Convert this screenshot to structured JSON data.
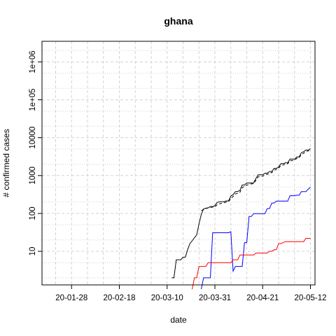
{
  "chart_data": {
    "type": "line",
    "title": "ghana",
    "xlabel": "date",
    "ylabel": "# confirmed cases",
    "x_ticks": [
      "20-01-28",
      "20-02-18",
      "20-03-10",
      "20-03-31",
      "20-04-21",
      "20-05-12"
    ],
    "y_ticks": [
      "10",
      "100",
      "1000",
      "10000",
      "1e+05",
      "1e+06"
    ],
    "xlim": [
      "2020-01-15",
      "2020-05-14"
    ],
    "ylim": [
      1.3,
      3500000
    ],
    "y_scale": "log",
    "grid": true,
    "series": [
      {
        "color": "#000000",
        "dash": "solid",
        "points": [
          [
            "2020-03-12",
            2
          ],
          [
            "2020-03-13",
            2
          ],
          [
            "2020-03-14",
            6
          ],
          [
            "2020-03-15",
            6
          ],
          [
            "2020-03-16",
            6
          ],
          [
            "2020-03-17",
            7
          ],
          [
            "2020-03-18",
            7
          ],
          [
            "2020-03-19",
            11
          ],
          [
            "2020-03-20",
            16
          ],
          [
            "2020-03-21",
            19
          ],
          [
            "2020-03-22",
            23
          ],
          [
            "2020-03-23",
            27
          ],
          [
            "2020-03-24",
            53
          ],
          [
            "2020-03-25",
            93
          ],
          [
            "2020-03-26",
            132
          ],
          [
            "2020-03-27",
            137
          ],
          [
            "2020-03-28",
            141
          ],
          [
            "2020-03-29",
            152
          ],
          [
            "2020-03-30",
            152
          ],
          [
            "2020-03-31",
            161
          ],
          [
            "2020-04-01",
            195
          ],
          [
            "2020-04-02",
            204
          ],
          [
            "2020-04-03",
            205
          ],
          [
            "2020-04-04",
            205
          ],
          [
            "2020-04-05",
            214
          ],
          [
            "2020-04-06",
            214
          ],
          [
            "2020-04-07",
            287
          ],
          [
            "2020-04-08",
            313
          ],
          [
            "2020-04-09",
            378
          ],
          [
            "2020-04-10",
            378
          ],
          [
            "2020-04-11",
            408
          ],
          [
            "2020-04-12",
            566
          ],
          [
            "2020-04-13",
            566
          ],
          [
            "2020-04-14",
            636
          ],
          [
            "2020-04-15",
            636
          ],
          [
            "2020-04-16",
            641
          ],
          [
            "2020-04-17",
            641
          ],
          [
            "2020-04-18",
            834
          ],
          [
            "2020-04-19",
            1042
          ],
          [
            "2020-04-20",
            1042
          ],
          [
            "2020-04-21",
            1042
          ],
          [
            "2020-04-22",
            1154
          ],
          [
            "2020-04-23",
            1154
          ],
          [
            "2020-04-24",
            1279
          ],
          [
            "2020-04-25",
            1279
          ],
          [
            "2020-04-26",
            1550
          ],
          [
            "2020-04-27",
            1550
          ],
          [
            "2020-04-28",
            1671
          ],
          [
            "2020-04-29",
            2074
          ],
          [
            "2020-04-30",
            2074
          ],
          [
            "2020-05-01",
            2169
          ],
          [
            "2020-05-02",
            2169
          ],
          [
            "2020-05-03",
            2719
          ],
          [
            "2020-05-04",
            2719
          ],
          [
            "2020-05-05",
            2719
          ],
          [
            "2020-05-06",
            3091
          ],
          [
            "2020-05-07",
            3091
          ],
          [
            "2020-05-08",
            4012
          ],
          [
            "2020-05-09",
            4263
          ],
          [
            "2020-05-10",
            4700
          ],
          [
            "2020-05-11",
            4700
          ],
          [
            "2020-05-12",
            5127
          ]
        ]
      },
      {
        "color": "#000000",
        "dash": "dashed",
        "points": [
          [
            "2020-03-25",
            118
          ],
          [
            "2020-03-26",
            128
          ],
          [
            "2020-03-27",
            135
          ],
          [
            "2020-03-28",
            140
          ],
          [
            "2020-03-29",
            145
          ],
          [
            "2020-03-30",
            147
          ],
          [
            "2020-03-31",
            150
          ],
          [
            "2020-04-01",
            170
          ],
          [
            "2020-04-02",
            180
          ],
          [
            "2020-04-03",
            185
          ],
          [
            "2020-04-04",
            190
          ],
          [
            "2020-04-05",
            200
          ],
          [
            "2020-04-06",
            205
          ],
          [
            "2020-04-07",
            250
          ],
          [
            "2020-04-08",
            280
          ],
          [
            "2020-04-09",
            330
          ],
          [
            "2020-04-10",
            340
          ],
          [
            "2020-04-11",
            360
          ],
          [
            "2020-04-12",
            480
          ],
          [
            "2020-04-13",
            520
          ],
          [
            "2020-04-14",
            560
          ],
          [
            "2020-04-15",
            580
          ],
          [
            "2020-04-16",
            600
          ],
          [
            "2020-04-17",
            610
          ],
          [
            "2020-04-18",
            750
          ],
          [
            "2020-04-19",
            920
          ],
          [
            "2020-04-20",
            950
          ],
          [
            "2020-04-21",
            960
          ],
          [
            "2020-04-22",
            1050
          ],
          [
            "2020-04-23",
            1080
          ],
          [
            "2020-04-24",
            1150
          ],
          [
            "2020-04-25",
            1200
          ],
          [
            "2020-04-26",
            1400
          ],
          [
            "2020-04-27",
            1450
          ],
          [
            "2020-04-28",
            1550
          ],
          [
            "2020-04-29",
            1850
          ],
          [
            "2020-04-30",
            1900
          ],
          [
            "2020-05-01",
            2000
          ],
          [
            "2020-05-02",
            2050
          ],
          [
            "2020-05-03",
            2450
          ],
          [
            "2020-05-04",
            2500
          ],
          [
            "2020-05-05",
            2550
          ],
          [
            "2020-05-06",
            2850
          ],
          [
            "2020-05-07",
            2950
          ],
          [
            "2020-05-08",
            3600
          ],
          [
            "2020-05-09",
            3900
          ],
          [
            "2020-05-10",
            4300
          ],
          [
            "2020-05-11",
            4450
          ],
          [
            "2020-05-12",
            4800
          ]
        ]
      },
      {
        "color": "#0000ff",
        "dash": "solid",
        "points": [
          [
            "2020-03-25",
            1
          ],
          [
            "2020-03-26",
            2
          ],
          [
            "2020-03-27",
            2
          ],
          [
            "2020-03-28",
            2
          ],
          [
            "2020-03-29",
            2
          ],
          [
            "2020-03-30",
            31
          ],
          [
            "2020-03-31",
            31
          ],
          [
            "2020-04-01",
            31
          ],
          [
            "2020-04-02",
            31
          ],
          [
            "2020-04-03",
            31
          ],
          [
            "2020-04-04",
            31
          ],
          [
            "2020-04-05",
            31
          ],
          [
            "2020-04-06",
            31
          ],
          [
            "2020-04-07",
            33
          ],
          [
            "2020-04-08",
            3
          ],
          [
            "2020-04-09",
            4
          ],
          [
            "2020-04-10",
            4
          ],
          [
            "2020-04-11",
            4
          ],
          [
            "2020-04-12",
            4
          ],
          [
            "2020-04-13",
            17
          ],
          [
            "2020-04-14",
            17
          ],
          [
            "2020-04-15",
            83
          ],
          [
            "2020-04-16",
            83
          ],
          [
            "2020-04-17",
            99
          ],
          [
            "2020-04-18",
            99
          ],
          [
            "2020-04-19",
            99
          ],
          [
            "2020-04-20",
            99
          ],
          [
            "2020-04-21",
            99
          ],
          [
            "2020-04-22",
            99
          ],
          [
            "2020-04-23",
            134
          ],
          [
            "2020-04-24",
            134
          ],
          [
            "2020-04-25",
            188
          ],
          [
            "2020-04-26",
            188
          ],
          [
            "2020-04-27",
            212
          ],
          [
            "2020-04-28",
            212
          ],
          [
            "2020-04-29",
            212
          ],
          [
            "2020-04-30",
            212
          ],
          [
            "2020-05-01",
            212
          ],
          [
            "2020-05-02",
            212
          ],
          [
            "2020-05-03",
            294
          ],
          [
            "2020-05-04",
            294
          ],
          [
            "2020-05-05",
            294
          ],
          [
            "2020-05-06",
            303
          ],
          [
            "2020-05-07",
            303
          ],
          [
            "2020-05-08",
            378
          ],
          [
            "2020-05-09",
            378
          ],
          [
            "2020-05-10",
            378
          ],
          [
            "2020-05-11",
            438
          ],
          [
            "2020-05-12",
            494
          ]
        ]
      },
      {
        "color": "#ff0000",
        "dash": "solid",
        "points": [
          [
            "2020-03-21",
            1
          ],
          [
            "2020-03-22",
            2
          ],
          [
            "2020-03-23",
            2
          ],
          [
            "2020-03-24",
            4
          ],
          [
            "2020-03-25",
            4
          ],
          [
            "2020-03-26",
            4
          ],
          [
            "2020-03-27",
            4
          ],
          [
            "2020-03-28",
            5
          ],
          [
            "2020-03-29",
            5
          ],
          [
            "2020-03-30",
            5
          ],
          [
            "2020-03-31",
            5
          ],
          [
            "2020-04-01",
            5
          ],
          [
            "2020-04-02",
            5
          ],
          [
            "2020-04-03",
            5
          ],
          [
            "2020-04-04",
            5
          ],
          [
            "2020-04-05",
            5
          ],
          [
            "2020-04-06",
            5
          ],
          [
            "2020-04-07",
            5
          ],
          [
            "2020-04-08",
            6
          ],
          [
            "2020-04-09",
            6
          ],
          [
            "2020-04-10",
            6
          ],
          [
            "2020-04-11",
            8
          ],
          [
            "2020-04-12",
            8
          ],
          [
            "2020-04-13",
            8
          ],
          [
            "2020-04-14",
            8
          ],
          [
            "2020-04-15",
            8
          ],
          [
            "2020-04-16",
            8
          ],
          [
            "2020-04-17",
            8
          ],
          [
            "2020-04-18",
            9
          ],
          [
            "2020-04-19",
            9
          ],
          [
            "2020-04-20",
            9
          ],
          [
            "2020-04-21",
            9
          ],
          [
            "2020-04-22",
            9
          ],
          [
            "2020-04-23",
            9
          ],
          [
            "2020-04-24",
            10
          ],
          [
            "2020-04-25",
            10
          ],
          [
            "2020-04-26",
            11
          ],
          [
            "2020-04-27",
            11
          ],
          [
            "2020-04-28",
            16
          ],
          [
            "2020-04-29",
            16
          ],
          [
            "2020-04-30",
            17
          ],
          [
            "2020-05-01",
            18
          ],
          [
            "2020-05-02",
            18
          ],
          [
            "2020-05-03",
            18
          ],
          [
            "2020-05-04",
            18
          ],
          [
            "2020-05-05",
            18
          ],
          [
            "2020-05-06",
            18
          ],
          [
            "2020-05-07",
            18
          ],
          [
            "2020-05-08",
            18
          ],
          [
            "2020-05-09",
            18
          ],
          [
            "2020-05-10",
            22
          ],
          [
            "2020-05-11",
            22
          ],
          [
            "2020-05-12",
            22
          ]
        ]
      }
    ]
  }
}
